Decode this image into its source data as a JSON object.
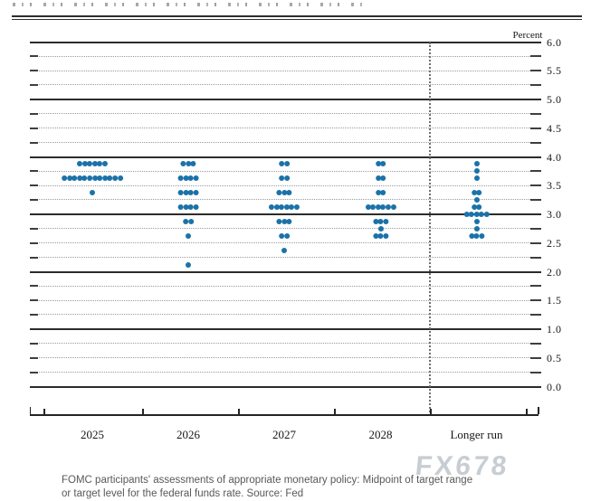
{
  "chart_data": {
    "type": "scatter",
    "subtype": "fomc-dot-plot",
    "title": "",
    "x_categories": [
      "2025",
      "2026",
      "2027",
      "2028",
      "Longer run"
    ],
    "y_axis": {
      "unit": "Percent",
      "min": 0.0,
      "max": 6.0,
      "label_step": 0.5,
      "minor_grid_step": 0.25,
      "major_grid_step": 1.0,
      "tick_labels": [
        "6.0",
        "5.5",
        "5.0",
        "4.5",
        "4.0",
        "3.5",
        "3.0",
        "2.5",
        "2.0",
        "1.5",
        "1.0",
        "0.5",
        "0.0"
      ]
    },
    "grid": {
      "major_style": "solid",
      "minor_style": "dotted",
      "separator_before": "Longer run",
      "separator_style": "dotted-vertical"
    },
    "dot_color": "#1b72a8",
    "series": [
      {
        "category": "2025",
        "dots": [
          {
            "rate": 3.875,
            "count": 6
          },
          {
            "rate": 3.625,
            "count": 12
          },
          {
            "rate": 3.375,
            "count": 1
          }
        ]
      },
      {
        "category": "2026",
        "dots": [
          {
            "rate": 3.875,
            "count": 3
          },
          {
            "rate": 3.625,
            "count": 4
          },
          {
            "rate": 3.375,
            "count": 4
          },
          {
            "rate": 3.125,
            "count": 4
          },
          {
            "rate": 2.875,
            "count": 2
          },
          {
            "rate": 2.625,
            "count": 1
          },
          {
            "rate": 2.125,
            "count": 1
          }
        ]
      },
      {
        "category": "2027",
        "dots": [
          {
            "rate": 3.875,
            "count": 2
          },
          {
            "rate": 3.625,
            "count": 2
          },
          {
            "rate": 3.375,
            "count": 3
          },
          {
            "rate": 3.125,
            "count": 6
          },
          {
            "rate": 2.875,
            "count": 3
          },
          {
            "rate": 2.625,
            "count": 2
          },
          {
            "rate": 2.375,
            "count": 1
          }
        ]
      },
      {
        "category": "2028",
        "dots": [
          {
            "rate": 3.875,
            "count": 2
          },
          {
            "rate": 3.625,
            "count": 2
          },
          {
            "rate": 3.375,
            "count": 2
          },
          {
            "rate": 3.125,
            "count": 6
          },
          {
            "rate": 2.875,
            "count": 3
          },
          {
            "rate": 2.75,
            "count": 1
          },
          {
            "rate": 2.625,
            "count": 3
          }
        ]
      },
      {
        "category": "Longer run",
        "dots": [
          {
            "rate": 3.875,
            "count": 1
          },
          {
            "rate": 3.75,
            "count": 1
          },
          {
            "rate": 3.625,
            "count": 1
          },
          {
            "rate": 3.375,
            "count": 2
          },
          {
            "rate": 3.25,
            "count": 1
          },
          {
            "rate": 3.125,
            "count": 2
          },
          {
            "rate": 3.0,
            "count": 5
          },
          {
            "rate": 2.875,
            "count": 1
          },
          {
            "rate": 2.75,
            "count": 1
          },
          {
            "rate": 2.625,
            "count": 3
          }
        ]
      }
    ]
  },
  "caption": {
    "line1": "FOMC participants' assessments of appropriate monetary policy: Midpoint of target range",
    "line2": "or target level for the federal funds rate. Source: Fed"
  },
  "watermark": {
    "text": "FX678",
    "color": "#c8cdd3"
  }
}
